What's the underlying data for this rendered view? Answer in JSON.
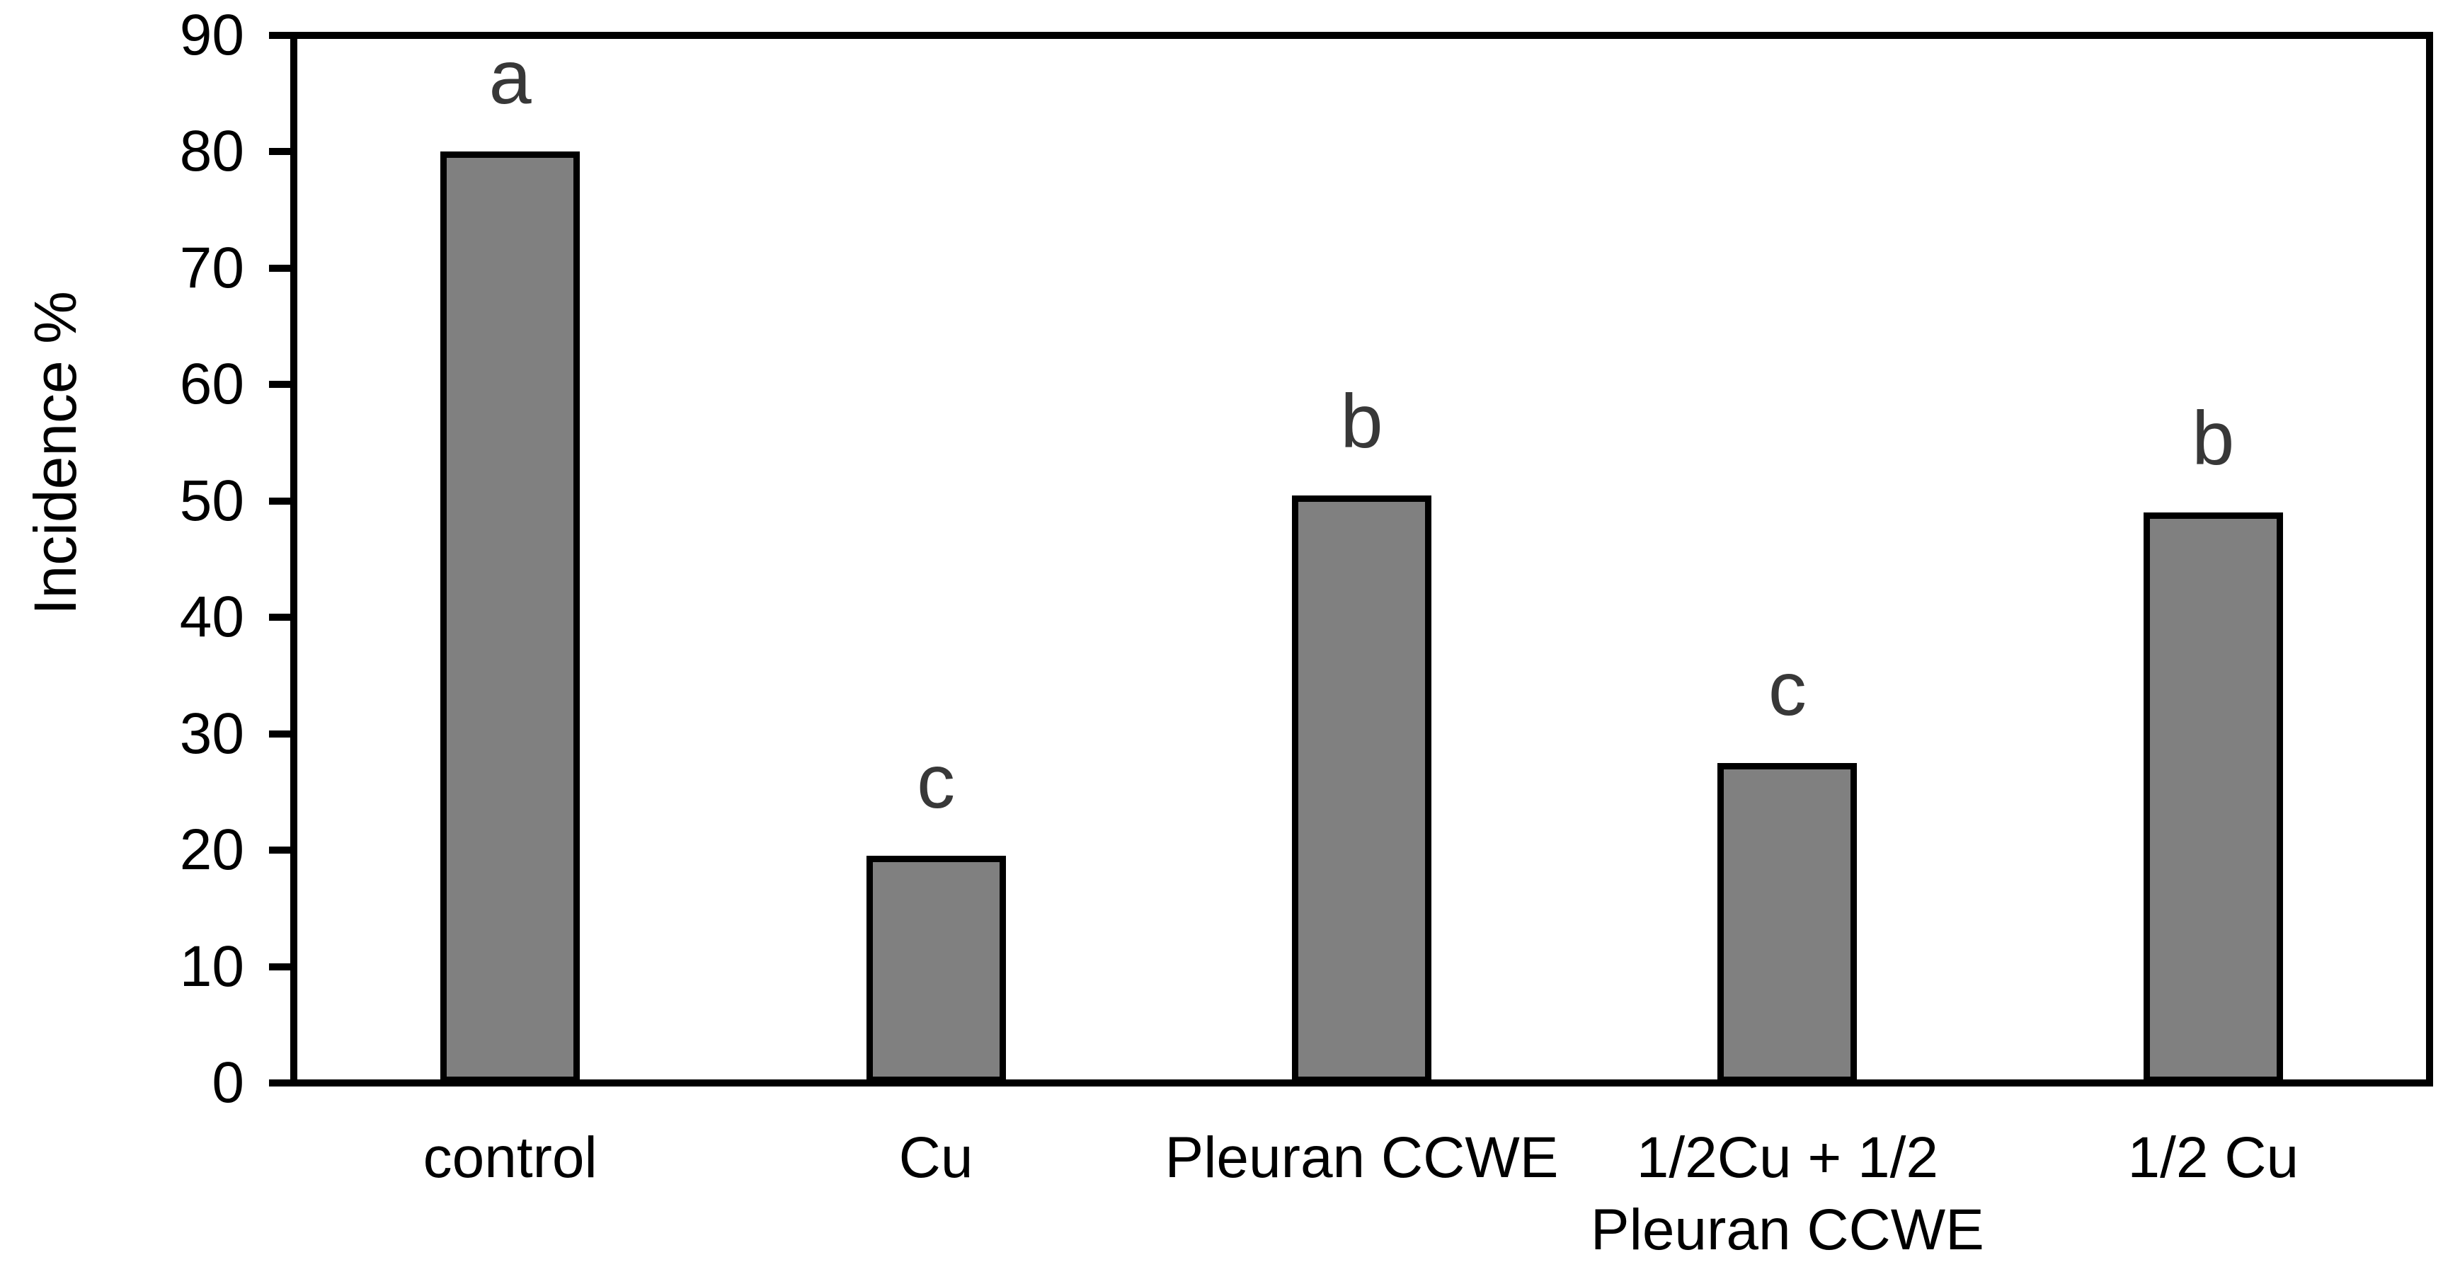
{
  "chart_data": {
    "type": "bar",
    "categories": [
      "control",
      "Cu",
      "Pleuran CCWE",
      "1/2Cu + 1/2\nPleuran CCWE",
      "1/2 Cu"
    ],
    "values": [
      80,
      19.5,
      50.5,
      27.5,
      49
    ],
    "bar_labels": [
      "a",
      "c",
      "b",
      "c",
      "b"
    ],
    "ylabel": "Incidence %",
    "ylim": [
      0,
      90
    ],
    "ytick_step": 10,
    "yticks": [
      0,
      10,
      20,
      30,
      40,
      50,
      60,
      70,
      80,
      90
    ],
    "grid": false,
    "legend": "none",
    "colors": {
      "background": "#ffffff",
      "bar_fill": "#808080",
      "bar_border": "#000000",
      "axis": "#000000",
      "text": "#000000",
      "bar_letter": "#383838"
    }
  }
}
